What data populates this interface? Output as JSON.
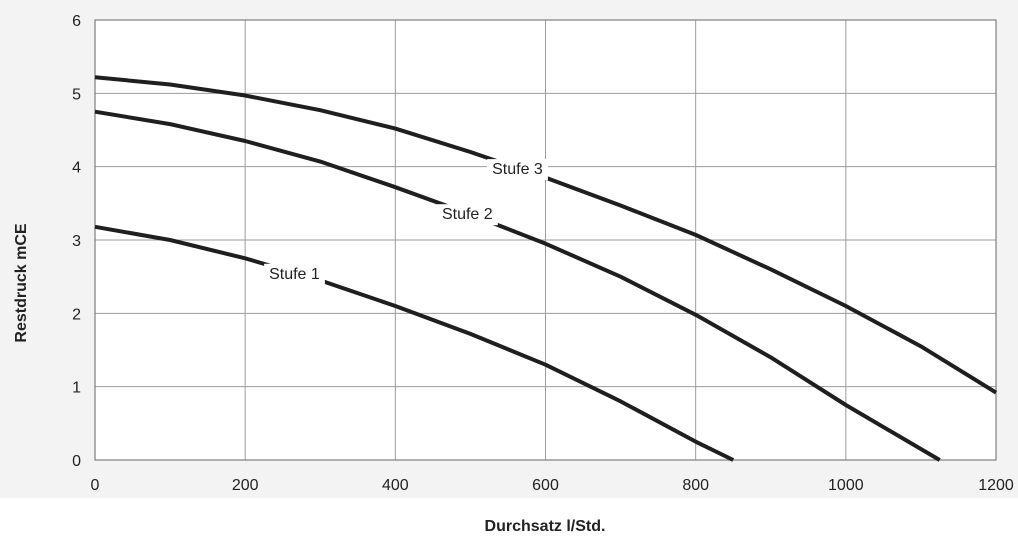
{
  "chart_data": {
    "type": "line",
    "xlabel": "Durchsatz l/Std.",
    "ylabel": "Restdruck mCE",
    "xlim": [
      0,
      1200
    ],
    "ylim": [
      0,
      6
    ],
    "x_ticks": [
      0,
      200,
      400,
      600,
      800,
      1000,
      1200
    ],
    "y_ticks": [
      0,
      1,
      2,
      3,
      4,
      5,
      6
    ],
    "grid": true,
    "legend": "inline labels on curves",
    "series": [
      {
        "name": "Stufe 1",
        "points": [
          [
            0,
            3.18
          ],
          [
            100,
            3.0
          ],
          [
            200,
            2.75
          ],
          [
            300,
            2.45
          ],
          [
            400,
            2.1
          ],
          [
            500,
            1.72
          ],
          [
            600,
            1.3
          ],
          [
            700,
            0.8
          ],
          [
            800,
            0.25
          ],
          [
            850,
            0.0
          ]
        ]
      },
      {
        "name": "Stufe 2",
        "points": [
          [
            0,
            4.75
          ],
          [
            100,
            4.58
          ],
          [
            200,
            4.35
          ],
          [
            300,
            4.07
          ],
          [
            400,
            3.72
          ],
          [
            500,
            3.35
          ],
          [
            600,
            2.95
          ],
          [
            700,
            2.5
          ],
          [
            800,
            1.98
          ],
          [
            900,
            1.4
          ],
          [
            1000,
            0.75
          ],
          [
            1125,
            0.0
          ]
        ]
      },
      {
        "name": "Stufe 3",
        "points": [
          [
            0,
            5.22
          ],
          [
            100,
            5.12
          ],
          [
            200,
            4.97
          ],
          [
            300,
            4.77
          ],
          [
            400,
            4.52
          ],
          [
            500,
            4.2
          ],
          [
            600,
            3.85
          ],
          [
            700,
            3.47
          ],
          [
            800,
            3.07
          ],
          [
            900,
            2.6
          ],
          [
            1000,
            2.1
          ],
          [
            1100,
            1.55
          ],
          [
            1200,
            0.92
          ]
        ]
      }
    ]
  }
}
